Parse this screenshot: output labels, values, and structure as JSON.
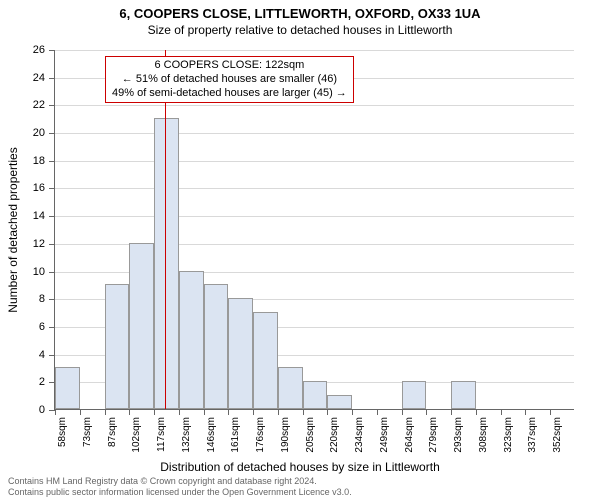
{
  "title": {
    "main": "6, COOPERS CLOSE, LITTLEWORTH, OXFORD, OX33 1UA",
    "sub": "Size of property relative to detached houses in Littleworth"
  },
  "axes": {
    "x_label": "Distribution of detached houses by size in Littleworth",
    "y_label": "Number of detached properties",
    "y_min": 0,
    "y_max": 26,
    "y_tick_step": 2,
    "x_ticks": [
      "58sqm",
      "73sqm",
      "87sqm",
      "102sqm",
      "117sqm",
      "132sqm",
      "146sqm",
      "161sqm",
      "176sqm",
      "190sqm",
      "205sqm",
      "220sqm",
      "234sqm",
      "249sqm",
      "264sqm",
      "279sqm",
      "293sqm",
      "308sqm",
      "323sqm",
      "337sqm",
      "352sqm"
    ]
  },
  "chart": {
    "type": "histogram",
    "bar_fill": "#dbe4f2",
    "bar_border": "#999999",
    "grid_color": "#d9d9d9",
    "background": "#ffffff",
    "marker_color": "#cc0000",
    "values": [
      3,
      0,
      9,
      12,
      21,
      10,
      9,
      8,
      7,
      3,
      2,
      1,
      0,
      0,
      2,
      0,
      2,
      0,
      0,
      0,
      0
    ],
    "marker_bin_index": 4.45
  },
  "annotation": {
    "line1": "6 COOPERS CLOSE: 122sqm",
    "line2": "← 51% of detached houses are smaller (46)",
    "line3": "49% of semi-detached houses are larger (45) →"
  },
  "footer": {
    "line1": "Contains HM Land Registry data © Crown copyright and database right 2024.",
    "line2": "Contains public sector information licensed under the Open Government Licence v3.0."
  }
}
